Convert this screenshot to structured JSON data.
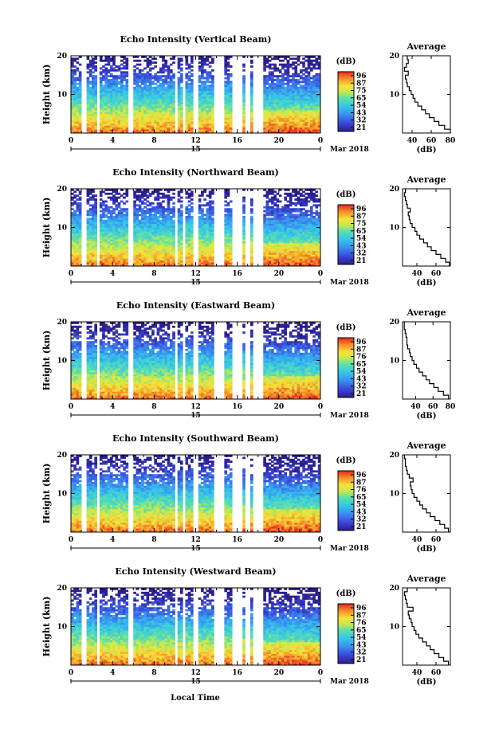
{
  "figure": {
    "xlabel": "Local Time",
    "date_day": "15",
    "date_month": "Mar 2018"
  },
  "chart_data": [
    {
      "type": "heatmap",
      "title": "Echo Intensity (Vertical Beam)",
      "ylabel": "Height (km)",
      "xlim": [
        0,
        24
      ],
      "ylim": [
        0,
        20
      ],
      "x_ticks": [
        "0",
        "4",
        "8",
        "12",
        "16",
        "20",
        "0"
      ],
      "y_ticks": [
        "10",
        "20"
      ],
      "colorbar_unit": "(dB)",
      "colorbar_ticks": [
        "96",
        "87",
        "75",
        "65",
        "54",
        "43",
        "32",
        "21"
      ],
      "colorbar_range": [
        21,
        96
      ],
      "data_gaps_hours": [
        [
          1.0,
          1.6
        ],
        [
          2.4,
          2.7
        ],
        [
          5.5,
          5.9
        ],
        [
          10.0,
          10.3
        ],
        [
          10.8,
          11.1
        ],
        [
          11.8,
          12.2
        ],
        [
          13.8,
          14.8
        ],
        [
          15.5,
          16.5
        ],
        [
          16.8,
          17.3
        ],
        [
          17.6,
          18.5
        ]
      ],
      "profile": {
        "title": "Average",
        "xlabel": "(dB)",
        "x_ticks": [
          "40",
          "60",
          "80"
        ],
        "xlim": [
          30,
          80
        ],
        "y_ticks": [
          "10",
          "20"
        ],
        "height_km": [
          1,
          2,
          3,
          4,
          5,
          6,
          7,
          8,
          9,
          10,
          11,
          12,
          13,
          14,
          15,
          16,
          17,
          18,
          19,
          20
        ],
        "values_db": [
          80,
          74,
          68,
          63,
          58,
          54,
          50,
          46,
          43,
          41,
          39,
          37,
          35,
          34,
          33,
          36,
          32,
          34,
          36,
          35
        ]
      }
    },
    {
      "type": "heatmap",
      "title": "Echo Intensity (Northward Beam)",
      "ylabel": "Height (km)",
      "xlim": [
        0,
        24
      ],
      "ylim": [
        0,
        20
      ],
      "x_ticks": [
        "0",
        "4",
        "8",
        "12",
        "16",
        "20",
        "0"
      ],
      "y_ticks": [
        "10",
        "20"
      ],
      "colorbar_unit": "(dB)",
      "colorbar_ticks": [
        "96",
        "87",
        "75",
        "65",
        "54",
        "43",
        "32",
        "21"
      ],
      "colorbar_range": [
        21,
        96
      ],
      "data_gaps_hours": [
        [
          1.0,
          1.6
        ],
        [
          2.4,
          2.7
        ],
        [
          5.5,
          5.9
        ],
        [
          10.0,
          10.3
        ],
        [
          10.8,
          11.1
        ],
        [
          11.8,
          12.2
        ],
        [
          13.8,
          14.8
        ],
        [
          15.5,
          16.5
        ],
        [
          16.8,
          17.3
        ],
        [
          17.6,
          18.5
        ]
      ],
      "profile": {
        "title": "Average",
        "xlabel": "(dB)",
        "x_ticks": [
          "40",
          "60"
        ],
        "xlim": [
          25,
          75
        ],
        "y_ticks": [
          "10",
          "20"
        ],
        "height_km": [
          1,
          2,
          3,
          4,
          5,
          6,
          7,
          8,
          9,
          10,
          11,
          12,
          13,
          14,
          15,
          16,
          17,
          18,
          19,
          20
        ],
        "values_db": [
          74,
          70,
          65,
          60,
          55,
          51,
          47,
          43,
          40,
          38,
          35,
          33,
          32,
          31,
          33,
          30,
          29,
          28,
          27,
          28
        ]
      }
    },
    {
      "type": "heatmap",
      "title": "Echo Intensity (Eastward Beam)",
      "ylabel": "Height (km)",
      "xlim": [
        0,
        24
      ],
      "ylim": [
        0,
        20
      ],
      "x_ticks": [
        "0",
        "4",
        "8",
        "12",
        "16",
        "20",
        "0"
      ],
      "y_ticks": [
        "10",
        "20"
      ],
      "colorbar_unit": "(dB)",
      "colorbar_ticks": [
        "96",
        "87",
        "76",
        "65",
        "54",
        "43",
        "32",
        "21"
      ],
      "colorbar_range": [
        21,
        96
      ],
      "data_gaps_hours": [
        [
          1.0,
          1.6
        ],
        [
          2.4,
          2.7
        ],
        [
          5.5,
          5.9
        ],
        [
          10.0,
          10.3
        ],
        [
          10.8,
          11.1
        ],
        [
          11.8,
          12.2
        ],
        [
          13.8,
          14.8
        ],
        [
          15.5,
          16.5
        ],
        [
          16.8,
          17.3
        ],
        [
          17.6,
          18.5
        ]
      ],
      "profile": {
        "title": "Average",
        "xlabel": "(dB)",
        "x_ticks": [
          "40",
          "60",
          "80"
        ],
        "xlim": [
          25,
          80
        ],
        "y_ticks": [
          "10",
          "20"
        ],
        "height_km": [
          1,
          2,
          3,
          4,
          5,
          6,
          7,
          8,
          9,
          10,
          11,
          12,
          13,
          14,
          15,
          16,
          17,
          18,
          19,
          20
        ],
        "values_db": [
          78,
          72,
          66,
          61,
          56,
          52,
          48,
          44,
          41,
          38,
          36,
          34,
          33,
          31,
          30,
          30,
          29,
          28,
          27,
          27
        ]
      }
    },
    {
      "type": "heatmap",
      "title": "Echo Intensity (Southward Beam)",
      "ylabel": "Height (km)",
      "xlim": [
        0,
        24
      ],
      "ylim": [
        0,
        20
      ],
      "x_ticks": [
        "0",
        "4",
        "8",
        "12",
        "16",
        "20",
        "0"
      ],
      "y_ticks": [
        "10",
        "20"
      ],
      "colorbar_unit": "(dB)",
      "colorbar_ticks": [
        "96",
        "87",
        "76",
        "65",
        "54",
        "43",
        "32",
        "21"
      ],
      "colorbar_range": [
        21,
        96
      ],
      "data_gaps_hours": [
        [
          1.0,
          1.6
        ],
        [
          2.4,
          2.7
        ],
        [
          5.5,
          5.9
        ],
        [
          10.0,
          10.3
        ],
        [
          10.8,
          11.1
        ],
        [
          11.8,
          12.2
        ],
        [
          13.8,
          14.8
        ],
        [
          15.5,
          16.5
        ],
        [
          16.8,
          17.3
        ],
        [
          17.6,
          18.5
        ]
      ],
      "profile": {
        "title": "Average",
        "xlabel": "(dB)",
        "x_ticks": [
          "40",
          "60"
        ],
        "xlim": [
          25,
          75
        ],
        "y_ticks": [
          "10",
          "20"
        ],
        "height_km": [
          1,
          2,
          3,
          4,
          5,
          6,
          7,
          8,
          9,
          10,
          11,
          12,
          13,
          14,
          15,
          16,
          17,
          18,
          19,
          20
        ],
        "values_db": [
          73,
          69,
          64,
          59,
          54,
          50,
          46,
          43,
          40,
          37,
          35,
          34,
          33,
          36,
          32,
          30,
          29,
          28,
          28,
          27
        ]
      }
    },
    {
      "type": "heatmap",
      "title": "Echo Intensity (Westward Beam)",
      "ylabel": "Height (km)",
      "xlim": [
        0,
        24
      ],
      "ylim": [
        0,
        20
      ],
      "x_ticks": [
        "0",
        "4",
        "8",
        "12",
        "16",
        "20",
        "0"
      ],
      "y_ticks": [
        "10",
        "20"
      ],
      "colorbar_unit": "(dB)",
      "colorbar_ticks": [
        "96",
        "87",
        "76",
        "65",
        "54",
        "43",
        "32",
        "21"
      ],
      "colorbar_range": [
        21,
        96
      ],
      "data_gaps_hours": [
        [
          1.0,
          1.6
        ],
        [
          2.4,
          2.7
        ],
        [
          5.5,
          5.9
        ],
        [
          10.0,
          10.3
        ],
        [
          10.8,
          11.1
        ],
        [
          11.8,
          12.2
        ],
        [
          13.8,
          14.8
        ],
        [
          15.5,
          16.5
        ],
        [
          16.8,
          17.3
        ],
        [
          17.6,
          18.5
        ]
      ],
      "profile": {
        "title": "Average",
        "xlabel": "(dB)",
        "x_ticks": [
          "40",
          "60"
        ],
        "xlim": [
          25,
          75
        ],
        "y_ticks": [
          "10",
          "20"
        ],
        "height_km": [
          1,
          2,
          3,
          4,
          5,
          6,
          7,
          8,
          9,
          10,
          11,
          12,
          13,
          14,
          15,
          16,
          17,
          18,
          19,
          20
        ],
        "values_db": [
          73,
          68,
          63,
          58,
          54,
          50,
          46,
          42,
          39,
          37,
          35,
          34,
          32,
          31,
          36,
          30,
          29,
          28,
          27,
          30
        ]
      }
    }
  ]
}
